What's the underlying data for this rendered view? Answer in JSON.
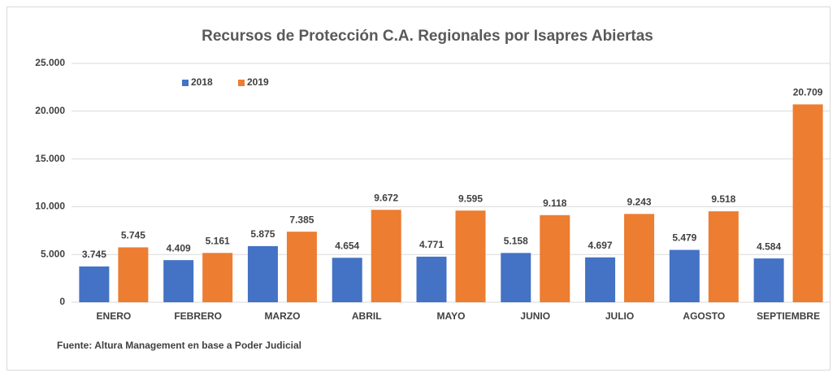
{
  "chart_data": {
    "type": "bar",
    "title": "Recursos de Protección C.A. Regionales por Isapres Abiertas",
    "source": "Fuente: Altura Management en base a Poder Judicial",
    "categories": [
      "ENERO",
      "FEBRERO",
      "MARZO",
      "ABRIL",
      "MAYO",
      "JUNIO",
      "JULIO",
      "AGOSTO",
      "SEPTIEMBRE"
    ],
    "series": [
      {
        "name": "2018",
        "color": "#4472c4",
        "values": [
          3745,
          4409,
          5875,
          4654,
          4771,
          5158,
          4697,
          5479,
          4584
        ],
        "value_labels": [
          "3.745",
          "4.409",
          "5.875",
          "4.654",
          "4.771",
          "5.158",
          "4.697",
          "5.479",
          "4.584"
        ]
      },
      {
        "name": "2019",
        "color": "#ed7d31",
        "values": [
          5745,
          5161,
          7385,
          9672,
          9595,
          9118,
          9243,
          9518,
          20709
        ],
        "value_labels": [
          "5.745",
          "5.161",
          "7.385",
          "9.672",
          "9.595",
          "9.118",
          "9.243",
          "9.518",
          "20.709"
        ]
      }
    ],
    "ylim": [
      0,
      25000
    ],
    "yticks": [
      0,
      {
        "value": 5000,
        "label": "5.000"
      },
      {
        "value": 10000,
        "label": "10.000"
      },
      {
        "value": 15000,
        "label": "15.000"
      },
      {
        "value": 20000,
        "label": "20.000"
      },
      {
        "value": 25000,
        "label": "25.000"
      }
    ],
    "grid": true,
    "legend": "top-left"
  }
}
